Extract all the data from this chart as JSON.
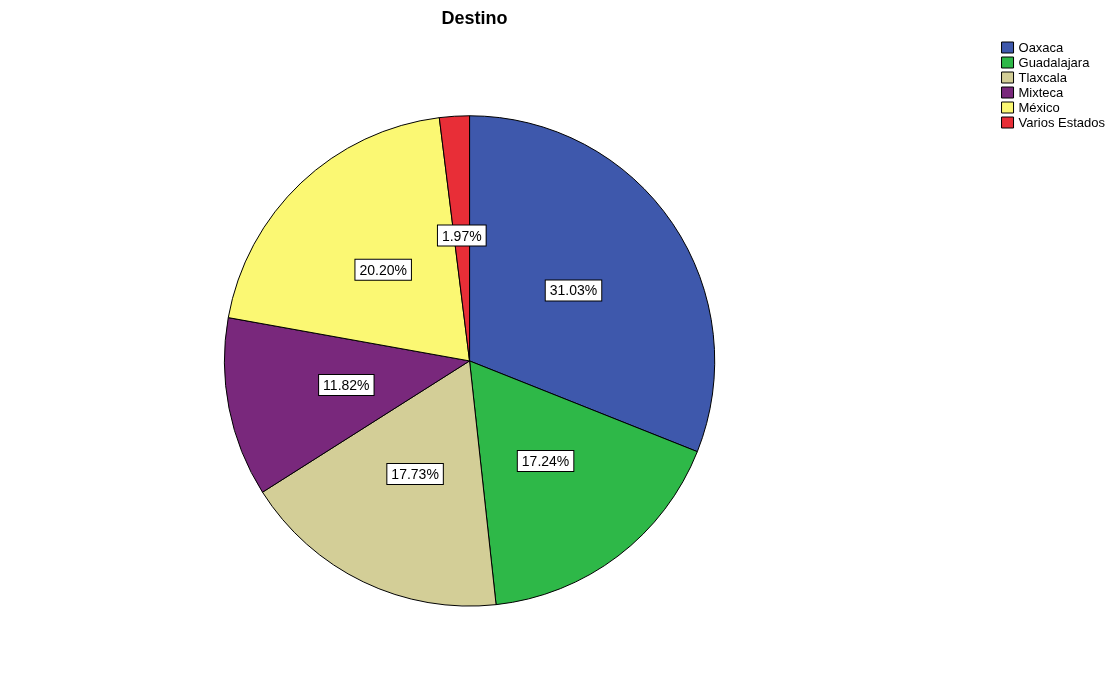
{
  "chart_data": {
    "type": "pie",
    "title": "Destino",
    "categories": [
      "Oaxaca",
      "Guadalajara",
      "Tlaxcala",
      "Mixteca",
      "México",
      "Varios Estados"
    ],
    "values": [
      31.03,
      17.24,
      17.73,
      11.82,
      20.2,
      1.97
    ],
    "colors": [
      "#3e58ac",
      "#2eb848",
      "#d3ce97",
      "#79287c",
      "#fbf873",
      "#e82e37"
    ],
    "value_labels": [
      "31.03%",
      "17.24%",
      "17.73%",
      "11.82%",
      "20.20%",
      "1.97%"
    ],
    "legend": "top right"
  }
}
